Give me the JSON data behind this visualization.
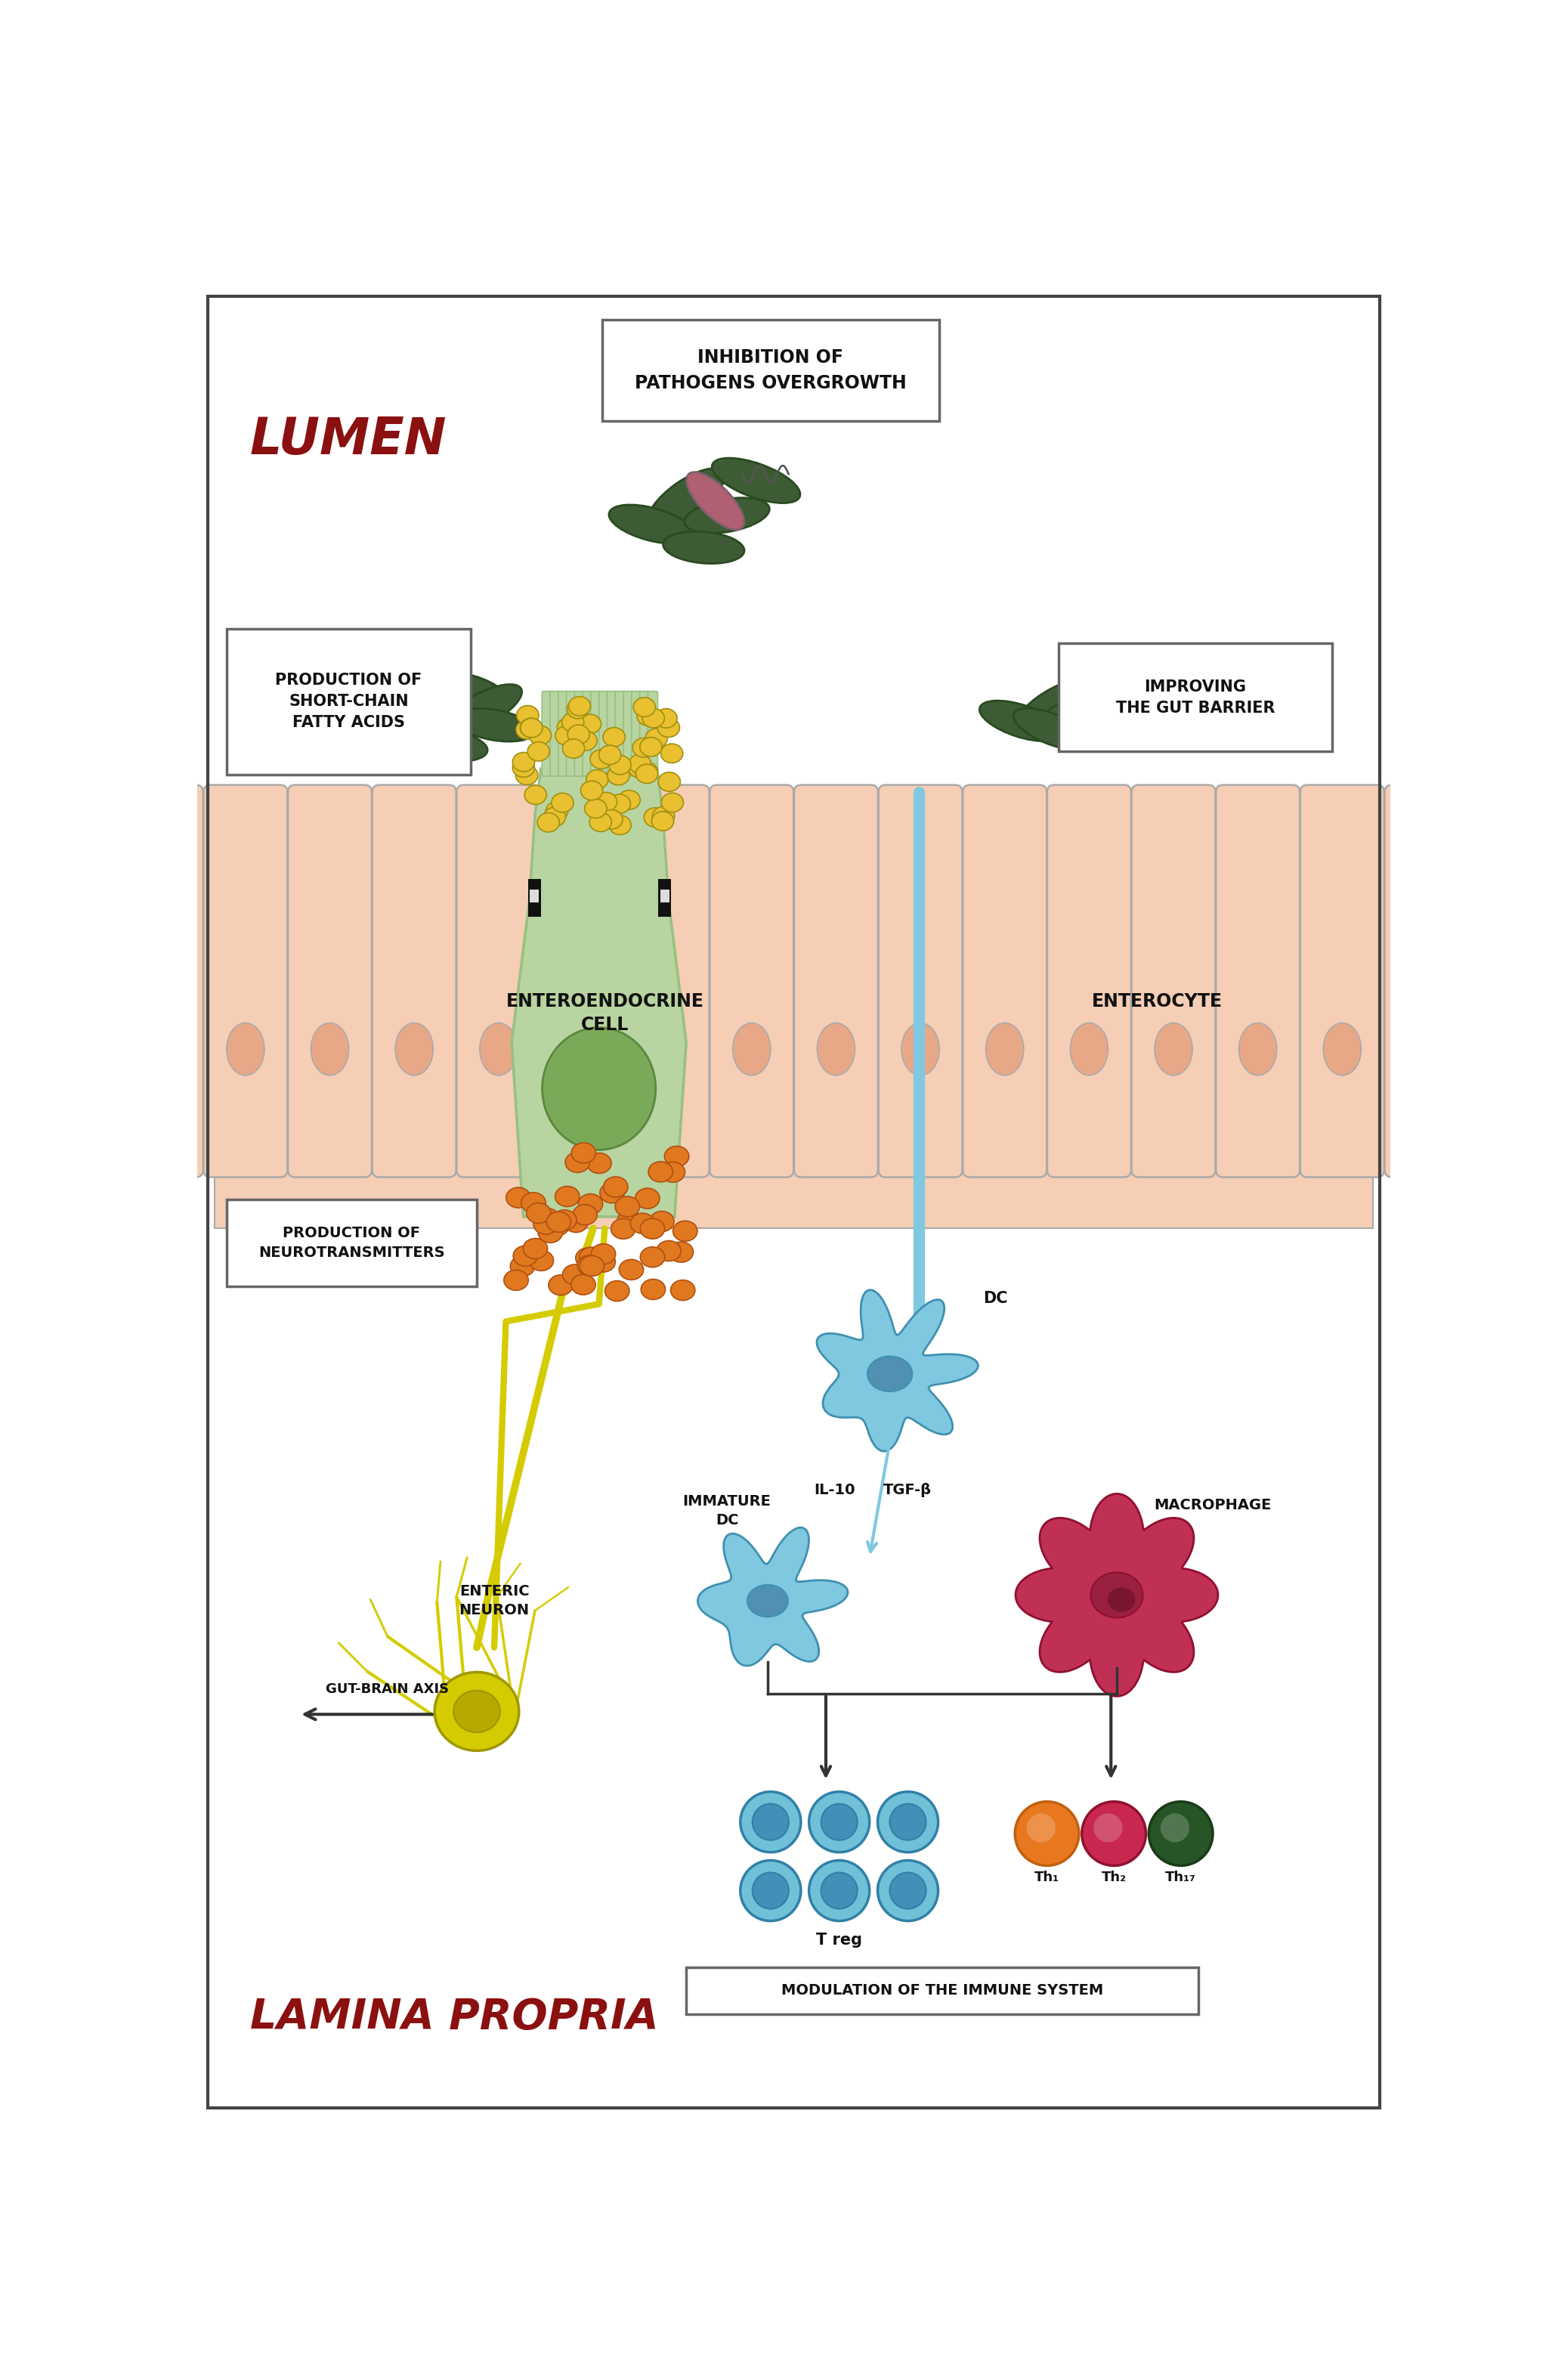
{
  "background_color": "#ffffff",
  "border_color": "#444444",
  "lumen_text": "LUMEN",
  "lumen_text_color": "#8B1010",
  "lamina_text": "LAMINA PROPRIA",
  "lamina_text_color": "#8B1010",
  "inhibition_box_text": "INHIBITION OF\nPATHOGENS OVERGROWTH",
  "scfa_box_text": "PRODUCTION OF\nSHORT-CHAIN\nFATTY ACIDS",
  "gut_barrier_box_text": "IMPROVING\nTHE GUT BARRIER",
  "neurotransmitter_text": "PRODUCTION OF\nNEUROTRANSMITTERS",
  "enteroendocrine_text": "ENTEROENDOCRINE\nCELL",
  "enterocyte_text": "ENTEROCYTE",
  "enteric_neuron_text": "ENTERIC\nNEURON",
  "gut_brain_text": "GUT-BRAIN AXIS",
  "dc_text": "DC",
  "immature_dc_text": "IMMATURE\nDC",
  "macrophage_text": "MACROPHAGE",
  "il10_text": "IL-10",
  "tgfb_text": "TGF-β",
  "treg_text": "T reg",
  "modulation_text": "MODULATION OF THE IMMUNE SYSTEM",
  "th1_text": "Th₁",
  "th2_text": "Th₂",
  "th17_text": "Th₁₇",
  "bacteria_color": "#3d5c35",
  "pathogen_color": "#b06070",
  "yellow_dot_color": "#e8c030",
  "orange_dot_color": "#e07820",
  "cell_green_light": "#b8d4a0",
  "cell_green_mid": "#98c080",
  "cell_nucleus_color": "#7aaa58",
  "villus_fill": "#f5ceb5",
  "villus_outline": "#aaaaaa",
  "villus_nucleus_fill": "#e8a888",
  "neuron_color": "#d4cc00",
  "neuron_outline": "#a09800",
  "dc_color": "#80c8e0",
  "dc_nucleus_color": "#5090b0",
  "macrophage_color": "#c03055",
  "macrophage_nucleus": "#9a2040",
  "macrophage_inner_nucleus": "#7a1530",
  "treg_outer": "#70c0d8",
  "treg_inner": "#4090b8",
  "th1_color": "#e87820",
  "th2_color": "#c82850",
  "th17_color": "#285528",
  "box_bg": "#ffffff",
  "box_border": "#666666",
  "dc_axon_color": "#80c8e0",
  "arrow_color": "#555555",
  "nerve_color": "#d4cc00"
}
